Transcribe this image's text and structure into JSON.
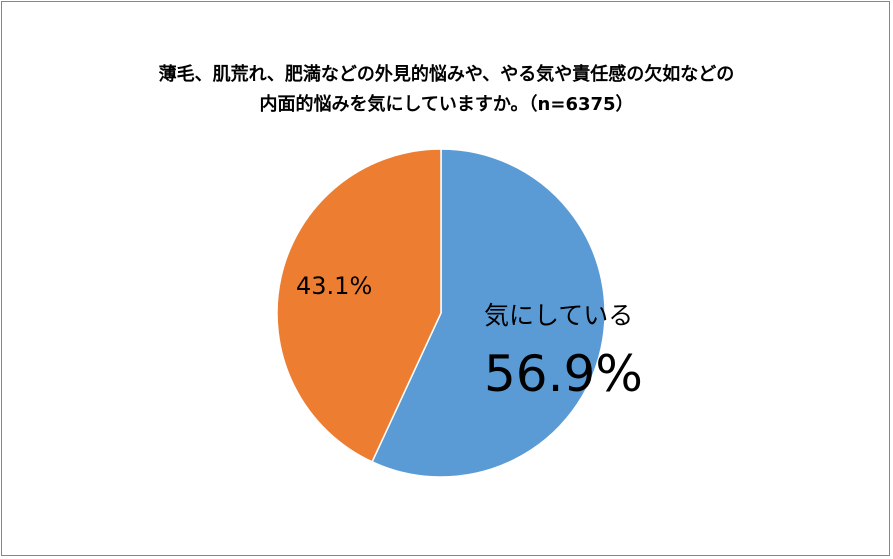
{
  "chart_data": {
    "type": "pie",
    "title_lines": [
      "薄毛、肌荒れ、肥満などの外見的悩みや、やる気や責任感の欠如などの",
      "内面的悩みを気にしていますか。（n=6375）"
    ],
    "slices": [
      {
        "name": "気にしている",
        "value": 56.9,
        "label": "56.9%",
        "color": "#5B9BD5"
      },
      {
        "name": "",
        "value": 43.1,
        "label": "43.1%",
        "color": "#ED7D31"
      }
    ],
    "start_angle_deg": 0,
    "direction": "clockwise",
    "legend": "none"
  }
}
